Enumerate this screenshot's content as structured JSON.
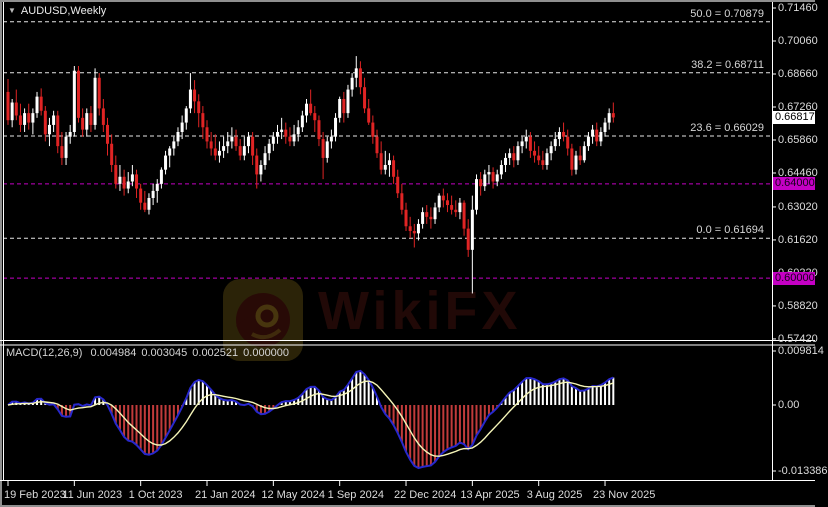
{
  "header": {
    "symbol_label": "AUDUSD,Weekly",
    "dropdown_icon": "▼"
  },
  "watermark": {
    "text": "WikiFX",
    "icon": "wikifx-eagle"
  },
  "price_axis": {
    "ticks": [
      "0.71460",
      "0.70060",
      "0.68660",
      "0.67260",
      "0.65860",
      "0.64460",
      "0.63020",
      "0.61620",
      "0.60220",
      "0.58820",
      "0.57420"
    ],
    "current_price": "0.66817",
    "level_badges": [
      {
        "label": "0.64000",
        "price": 0.64
      },
      {
        "label": "0.60000",
        "price": 0.6
      }
    ]
  },
  "fibonacci": [
    {
      "label": "50.0 = 0.70879",
      "pct": "50.0",
      "price": 0.70879
    },
    {
      "label": "38.2 = 0.68711",
      "pct": "38.2",
      "price": 0.68711
    },
    {
      "label": "23.6 = 0.66029",
      "pct": "23.6",
      "price": 0.66029
    },
    {
      "label": "0.0 = 0.61694",
      "pct": "0.0",
      "price": 0.61694
    }
  ],
  "horizontal_levels": [
    {
      "price": 0.64,
      "color": "#c400c4"
    },
    {
      "price": 0.6,
      "color": "#c400c4"
    }
  ],
  "macd": {
    "name": "MACD(12,26,9)",
    "values": [
      "0.004984",
      "0.003045",
      "0.002521",
      "0.000000"
    ],
    "axis": {
      "max": "0.009814",
      "zero": "0.00",
      "min": "-0.013386"
    },
    "params": {
      "fast": 12,
      "slow": 26,
      "signal": 9
    }
  },
  "time_axis": {
    "labels": [
      "19 Feb 2023",
      "11 Jun 2023",
      "1 Oct 2023",
      "21 Jan 2024",
      "12 May 2024",
      "1 Sep 2024",
      "22 Dec 2024",
      "13 Apr 2025",
      "3 Aug 2025",
      "23 Nov 2025"
    ]
  },
  "colors": {
    "bull": "#ffffff",
    "bear": "#e02424",
    "macd_hist_up": "#ffffff",
    "macd_hist_down": "#c13b3b",
    "macd_line": "#2828cc",
    "signal_line": "#f5f5b8",
    "fib_line": "#e6e6e6",
    "level_line": "#c400c4",
    "axis_text": "#dcdcdc",
    "badge_current_bg": "#ffffff",
    "badge_level_bg": "#c400c4"
  },
  "chart_data": [
    {
      "type": "candlestick",
      "title": "AUDUSD,Weekly",
      "pair": "AUDUSD",
      "timeframe": "Weekly",
      "x_tick_labels": [
        "19 Feb 2023",
        "11 Jun 2023",
        "1 Oct 2023",
        "21 Jan 2024",
        "12 May 2024",
        "1 Sep 2024",
        "22 Dec 2024",
        "13 Apr 2025",
        "3 Aug 2025",
        "23 Nov 2025"
      ],
      "y_tick_labels": [
        0.7146,
        0.7006,
        0.6866,
        0.6726,
        0.6586,
        0.6446,
        0.6302,
        0.6162,
        0.6022,
        0.5882,
        0.5742
      ],
      "ylim": [
        0.5742,
        0.7146
      ],
      "current_price": 0.66817,
      "fib_levels": [
        {
          "pct": 50.0,
          "price": 0.70879
        },
        {
          "pct": 38.2,
          "price": 0.68711
        },
        {
          "pct": 23.6,
          "price": 0.66029
        },
        {
          "pct": 0.0,
          "price": 0.61694
        }
      ],
      "hlines": [
        0.64,
        0.6
      ],
      "ohlc_format": [
        "open",
        "high",
        "low",
        "close"
      ],
      "ohlc": [
        [
          0.679,
          0.6845,
          0.665,
          0.667
        ],
        [
          0.667,
          0.676,
          0.664,
          0.6745
        ],
        [
          0.6745,
          0.68,
          0.667,
          0.669
        ],
        [
          0.669,
          0.674,
          0.662,
          0.665
        ],
        [
          0.665,
          0.672,
          0.662,
          0.67
        ],
        [
          0.67,
          0.674,
          0.663,
          0.666
        ],
        [
          0.666,
          0.672,
          0.661,
          0.67
        ],
        [
          0.67,
          0.679,
          0.668,
          0.677
        ],
        [
          0.677,
          0.6805,
          0.669,
          0.671
        ],
        [
          0.671,
          0.673,
          0.658,
          0.661
        ],
        [
          0.661,
          0.668,
          0.656,
          0.665
        ],
        [
          0.665,
          0.671,
          0.662,
          0.669
        ],
        [
          0.669,
          0.671,
          0.653,
          0.656
        ],
        [
          0.656,
          0.662,
          0.648,
          0.651
        ],
        [
          0.651,
          0.662,
          0.648,
          0.66
        ],
        [
          0.66,
          0.665,
          0.657,
          0.662
        ],
        [
          0.662,
          0.69,
          0.66,
          0.688
        ],
        [
          0.688,
          0.69,
          0.666,
          0.668
        ],
        [
          0.668,
          0.672,
          0.66,
          0.663
        ],
        [
          0.663,
          0.672,
          0.66,
          0.67
        ],
        [
          0.67,
          0.673,
          0.662,
          0.665
        ],
        [
          0.665,
          0.689,
          0.663,
          0.685
        ],
        [
          0.685,
          0.687,
          0.669,
          0.672
        ],
        [
          0.672,
          0.676,
          0.662,
          0.665
        ],
        [
          0.665,
          0.668,
          0.652,
          0.657
        ],
        [
          0.657,
          0.661,
          0.645,
          0.648
        ],
        [
          0.648,
          0.652,
          0.638,
          0.64
        ],
        [
          0.64,
          0.648,
          0.637,
          0.643
        ],
        [
          0.643,
          0.646,
          0.635,
          0.638
        ],
        [
          0.638,
          0.645,
          0.636,
          0.641
        ],
        [
          0.641,
          0.648,
          0.639,
          0.644
        ],
        [
          0.644,
          0.646,
          0.634,
          0.638
        ],
        [
          0.638,
          0.64,
          0.629,
          0.632
        ],
        [
          0.632,
          0.637,
          0.628,
          0.629
        ],
        [
          0.629,
          0.636,
          0.627,
          0.634
        ],
        [
          0.634,
          0.64,
          0.631,
          0.637
        ],
        [
          0.637,
          0.642,
          0.632,
          0.64
        ],
        [
          0.64,
          0.647,
          0.638,
          0.646
        ],
        [
          0.646,
          0.654,
          0.644,
          0.652
        ],
        [
          0.652,
          0.656,
          0.647,
          0.655
        ],
        [
          0.655,
          0.66,
          0.652,
          0.658
        ],
        [
          0.658,
          0.664,
          0.656,
          0.662
        ],
        [
          0.662,
          0.669,
          0.659,
          0.666
        ],
        [
          0.666,
          0.673,
          0.663,
          0.672
        ],
        [
          0.672,
          0.687,
          0.67,
          0.68
        ],
        [
          0.68,
          0.684,
          0.67,
          0.675
        ],
        [
          0.675,
          0.678,
          0.664,
          0.67
        ],
        [
          0.67,
          0.673,
          0.659,
          0.664
        ],
        [
          0.664,
          0.667,
          0.655,
          0.658
        ],
        [
          0.658,
          0.662,
          0.652,
          0.655
        ],
        [
          0.655,
          0.661,
          0.65,
          0.652
        ],
        [
          0.652,
          0.658,
          0.649,
          0.654
        ],
        [
          0.654,
          0.66,
          0.651,
          0.656
        ],
        [
          0.656,
          0.662,
          0.653,
          0.658
        ],
        [
          0.658,
          0.664,
          0.655,
          0.66
        ],
        [
          0.66,
          0.663,
          0.654,
          0.656
        ],
        [
          0.656,
          0.659,
          0.65,
          0.652
        ],
        [
          0.652,
          0.66,
          0.65,
          0.656
        ],
        [
          0.656,
          0.662,
          0.653,
          0.66
        ],
        [
          0.66,
          0.662,
          0.648,
          0.652
        ],
        [
          0.652,
          0.655,
          0.638,
          0.644
        ],
        [
          0.644,
          0.65,
          0.641,
          0.648
        ],
        [
          0.648,
          0.656,
          0.646,
          0.653
        ],
        [
          0.653,
          0.659,
          0.65,
          0.657
        ],
        [
          0.657,
          0.662,
          0.654,
          0.66
        ],
        [
          0.66,
          0.665,
          0.657,
          0.662
        ],
        [
          0.662,
          0.668,
          0.659,
          0.663
        ],
        [
          0.663,
          0.666,
          0.657,
          0.66
        ],
        [
          0.66,
          0.664,
          0.656,
          0.658
        ],
        [
          0.658,
          0.665,
          0.656,
          0.661
        ],
        [
          0.661,
          0.667,
          0.658,
          0.664
        ],
        [
          0.664,
          0.671,
          0.662,
          0.669
        ],
        [
          0.669,
          0.676,
          0.666,
          0.674
        ],
        [
          0.674,
          0.68,
          0.669,
          0.67
        ],
        [
          0.67,
          0.673,
          0.662,
          0.667
        ],
        [
          0.667,
          0.669,
          0.656,
          0.659
        ],
        [
          0.659,
          0.662,
          0.642,
          0.651
        ],
        [
          0.651,
          0.66,
          0.649,
          0.658
        ],
        [
          0.658,
          0.663,
          0.655,
          0.66
        ],
        [
          0.66,
          0.67,
          0.658,
          0.668
        ],
        [
          0.668,
          0.677,
          0.666,
          0.676
        ],
        [
          0.676,
          0.679,
          0.666,
          0.67
        ],
        [
          0.67,
          0.682,
          0.668,
          0.68
        ],
        [
          0.68,
          0.687,
          0.677,
          0.685
        ],
        [
          0.685,
          0.6942,
          0.681,
          0.689
        ],
        [
          0.689,
          0.692,
          0.678,
          0.681
        ],
        [
          0.681,
          0.685,
          0.67,
          0.672
        ],
        [
          0.672,
          0.676,
          0.665,
          0.666
        ],
        [
          0.666,
          0.669,
          0.657,
          0.66
        ],
        [
          0.66,
          0.663,
          0.651,
          0.653
        ],
        [
          0.653,
          0.658,
          0.644,
          0.646
        ],
        [
          0.646,
          0.654,
          0.644,
          0.648
        ],
        [
          0.648,
          0.653,
          0.643,
          0.65
        ],
        [
          0.65,
          0.652,
          0.64,
          0.643
        ],
        [
          0.643,
          0.646,
          0.634,
          0.636
        ],
        [
          0.636,
          0.64,
          0.627,
          0.629
        ],
        [
          0.629,
          0.632,
          0.62,
          0.622
        ],
        [
          0.622,
          0.626,
          0.617,
          0.62
        ],
        [
          0.62,
          0.623,
          0.613,
          0.619
        ],
        [
          0.619,
          0.625,
          0.616,
          0.623
        ],
        [
          0.623,
          0.63,
          0.621,
          0.628
        ],
        [
          0.628,
          0.631,
          0.623,
          0.626
        ],
        [
          0.626,
          0.63,
          0.621,
          0.625
        ],
        [
          0.625,
          0.632,
          0.623,
          0.63
        ],
        [
          0.63,
          0.636,
          0.628,
          0.635
        ],
        [
          0.635,
          0.638,
          0.63,
          0.633
        ],
        [
          0.633,
          0.636,
          0.628,
          0.631
        ],
        [
          0.631,
          0.635,
          0.627,
          0.629
        ],
        [
          0.629,
          0.633,
          0.626,
          0.628
        ],
        [
          0.628,
          0.634,
          0.625,
          0.632
        ],
        [
          0.632,
          0.633,
          0.618,
          0.621
        ],
        [
          0.621,
          0.625,
          0.609,
          0.612
        ],
        [
          0.612,
          0.635,
          0.5935,
          0.629
        ],
        [
          0.629,
          0.644,
          0.627,
          0.642
        ],
        [
          0.642,
          0.645,
          0.635,
          0.639
        ],
        [
          0.639,
          0.646,
          0.637,
          0.644
        ],
        [
          0.644,
          0.648,
          0.64,
          0.645
        ],
        [
          0.645,
          0.647,
          0.638,
          0.641
        ],
        [
          0.641,
          0.646,
          0.639,
          0.644
        ],
        [
          0.644,
          0.65,
          0.642,
          0.648
        ],
        [
          0.648,
          0.653,
          0.645,
          0.651
        ],
        [
          0.651,
          0.655,
          0.648,
          0.653
        ],
        [
          0.653,
          0.656,
          0.647,
          0.65
        ],
        [
          0.65,
          0.658,
          0.648,
          0.656
        ],
        [
          0.656,
          0.66,
          0.653,
          0.658
        ],
        [
          0.658,
          0.663,
          0.655,
          0.66
        ],
        [
          0.66,
          0.662,
          0.651,
          0.654
        ],
        [
          0.654,
          0.658,
          0.649,
          0.652
        ],
        [
          0.652,
          0.656,
          0.648,
          0.65
        ],
        [
          0.65,
          0.654,
          0.646,
          0.648
        ],
        [
          0.648,
          0.655,
          0.646,
          0.653
        ],
        [
          0.653,
          0.658,
          0.65,
          0.656
        ],
        [
          0.656,
          0.662,
          0.654,
          0.659
        ],
        [
          0.659,
          0.664,
          0.656,
          0.662
        ],
        [
          0.662,
          0.666,
          0.658,
          0.66
        ],
        [
          0.66,
          0.663,
          0.652,
          0.655
        ],
        [
          0.655,
          0.657,
          0.6435,
          0.646
        ],
        [
          0.646,
          0.654,
          0.644,
          0.652
        ],
        [
          0.652,
          0.656,
          0.648,
          0.65
        ],
        [
          0.65,
          0.658,
          0.649,
          0.656
        ],
        [
          0.656,
          0.662,
          0.654,
          0.66
        ],
        [
          0.66,
          0.665,
          0.657,
          0.663
        ],
        [
          0.663,
          0.666,
          0.656,
          0.658
        ],
        [
          0.658,
          0.664,
          0.656,
          0.662
        ],
        [
          0.662,
          0.668,
          0.66,
          0.666
        ],
        [
          0.666,
          0.672,
          0.663,
          0.67
        ],
        [
          0.67,
          0.6745,
          0.666,
          0.66817
        ]
      ]
    },
    {
      "type": "bar",
      "subtype": "macd-histogram-with-lines",
      "title": "MACD(12,26,9)",
      "readout_values": [
        0.004984,
        0.003045,
        0.002521,
        0.0
      ],
      "y_ticks": [
        0.009814,
        0.0,
        -0.013386
      ],
      "ylim": [
        -0.013386,
        0.009814
      ],
      "note": "histogram and MACD line = EMA12-EMA26 of closes above; signal = EMA9 of MACD"
    }
  ]
}
